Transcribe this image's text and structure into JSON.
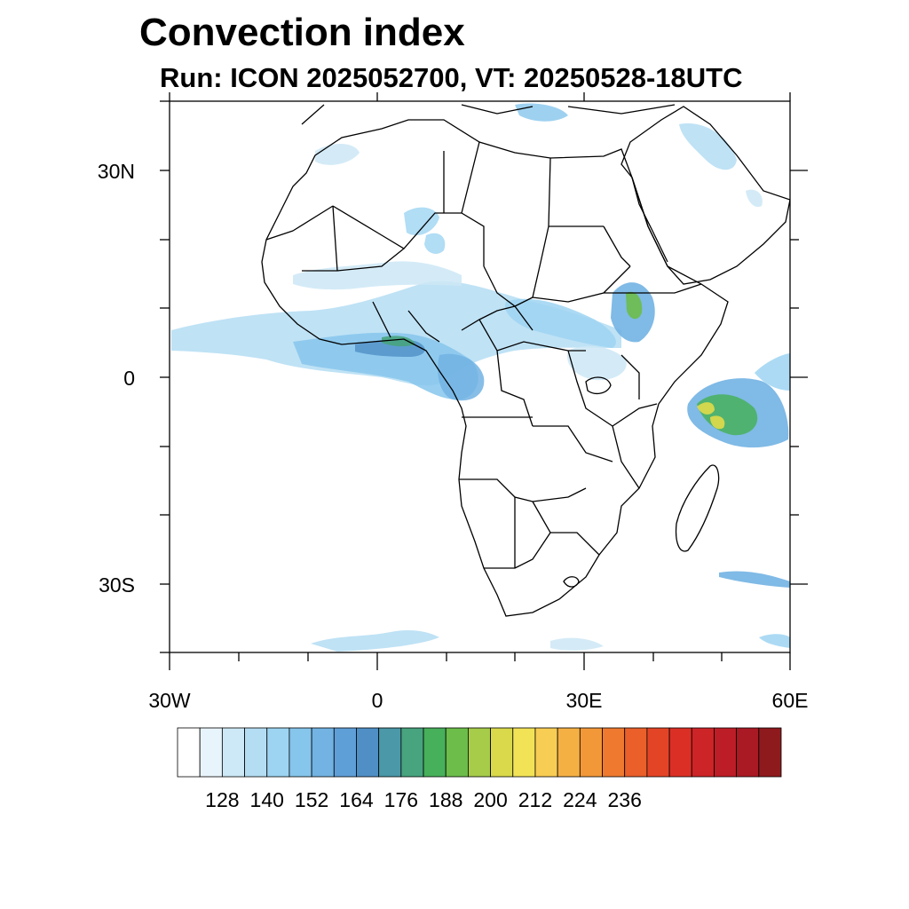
{
  "title": "Convection index",
  "subtitle": "Run: ICON 2025052700,  VT: 20250528-18UTC",
  "axes": {
    "lat_labels": [
      "30N",
      "0",
      "30S"
    ],
    "lon_labels": [
      "30W",
      "0",
      "30E",
      "60E"
    ]
  },
  "legend": {
    "labels": [
      "128",
      "140",
      "152",
      "164",
      "176",
      "188",
      "200",
      "212",
      "224",
      "236"
    ],
    "colors": [
      "#ffffff",
      "#e8f4fb",
      "#cde8f6",
      "#b4ddf3",
      "#9dd4f2",
      "#86c5ec",
      "#72b3e3",
      "#5f9fd8",
      "#4f8fc6",
      "#4a98a8",
      "#47a47e",
      "#47b05a",
      "#6cbd4a",
      "#a6cc4a",
      "#d9d94b",
      "#f2e356",
      "#f8cd54",
      "#f5b044",
      "#f39838",
      "#ef7a2f",
      "#ea5f2a",
      "#e44426",
      "#db2f26",
      "#cd2428",
      "#bd1d27",
      "#aa1a24",
      "#8f1a1d"
    ]
  },
  "map": {
    "region": "Africa",
    "lon_range": [
      -30,
      60
    ],
    "lat_range": [
      -40,
      40
    ]
  }
}
